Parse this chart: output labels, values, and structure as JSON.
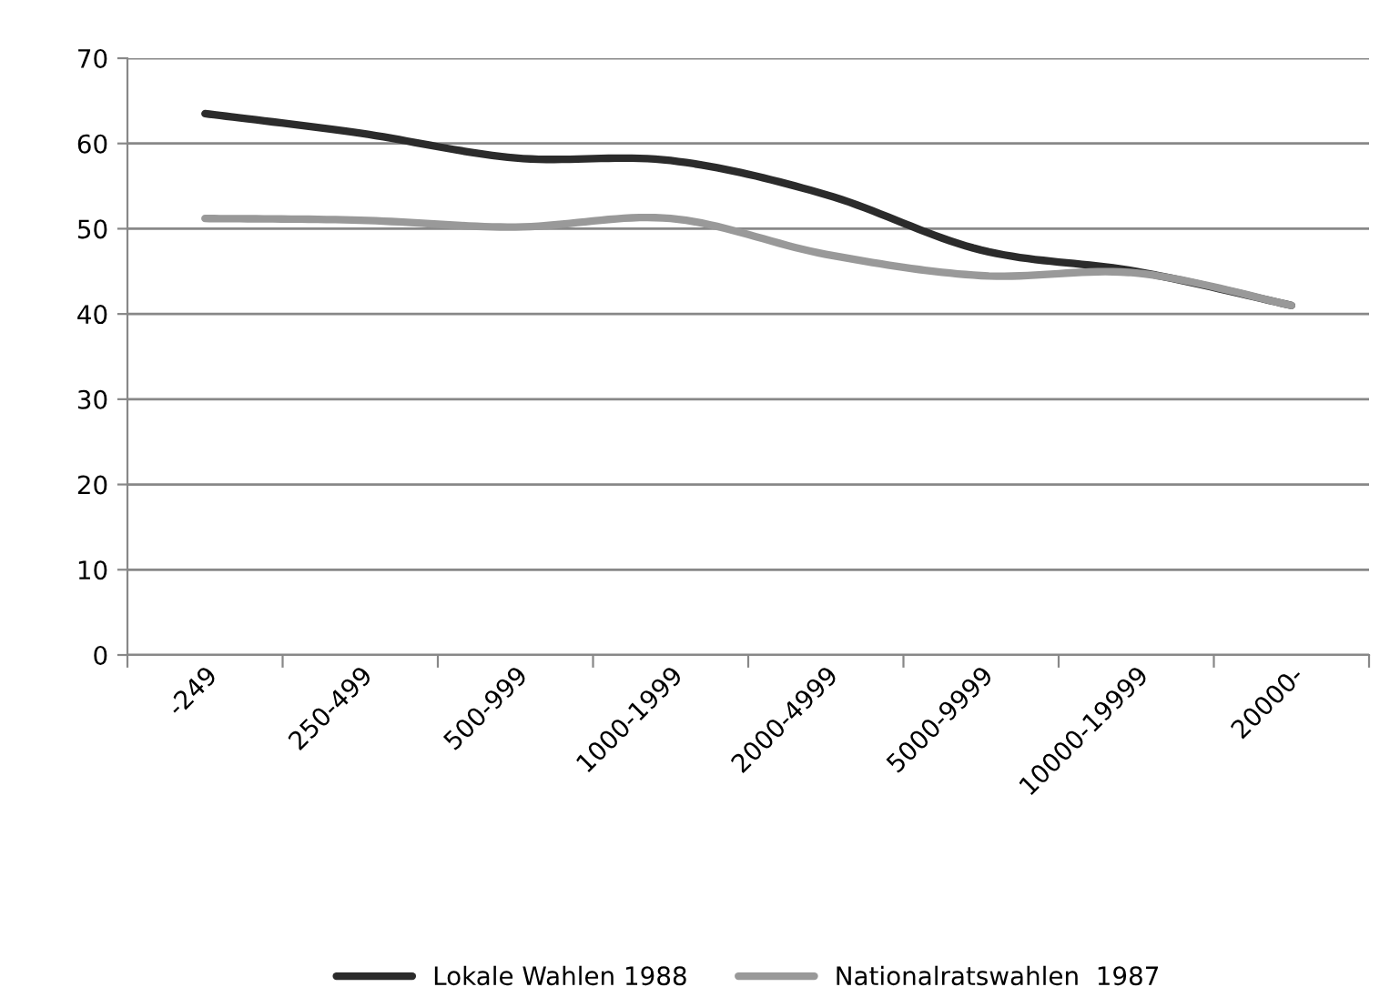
{
  "chart_data": {
    "type": "line",
    "categories": [
      "-249",
      "250-499",
      "500-999",
      "1000-1999",
      "2000-4999",
      "5000-9999",
      "10000-19999",
      "20000-"
    ],
    "series": [
      {
        "name": "Lokale Wahlen 1988",
        "color": "#2b2b2b",
        "values": [
          63.5,
          61.2,
          58.3,
          58.0,
          54.0,
          47.5,
          45.0,
          41.0
        ]
      },
      {
        "name": "Nationalratswahlen  1987",
        "color": "#999999",
        "values": [
          51.2,
          51.0,
          50.2,
          51.2,
          47.0,
          44.5,
          44.8,
          41.0
        ]
      }
    ],
    "ylim": [
      0,
      70
    ],
    "yticks": [
      0,
      10,
      20,
      30,
      40,
      50,
      60,
      70
    ],
    "grid": "y",
    "legend": "bottom",
    "marker": "none",
    "line_style": "solid"
  }
}
